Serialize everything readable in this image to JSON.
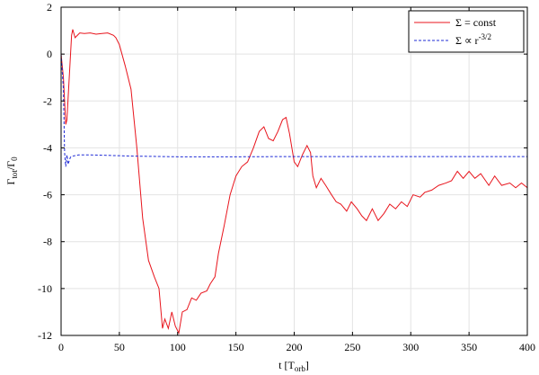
{
  "chart_data": {
    "type": "line",
    "x_label": {
      "main": "t [T",
      "sub": "orb",
      "end": "]"
    },
    "y_label": {
      "main": "Γ",
      "sub": "tot",
      "mid": "/Γ",
      "sub2": "0"
    },
    "xlim": [
      0,
      400
    ],
    "xticks": [
      0,
      50,
      100,
      150,
      200,
      250,
      300,
      350,
      400
    ],
    "ylim": [
      -12,
      2
    ],
    "yticks": [
      -12,
      -10,
      -8,
      -6,
      -4,
      -2,
      0,
      2
    ],
    "grid": true,
    "legend": "upper right",
    "series": [
      {
        "name": "Σ = const",
        "color": "#e8141c",
        "dash": "solid",
        "x": [
          0,
          2,
          4,
          5,
          7,
          9,
          10,
          12,
          14,
          16,
          20,
          25,
          30,
          35,
          40,
          45,
          47,
          50,
          55,
          60,
          65,
          70,
          75,
          80,
          84,
          87,
          89,
          92,
          95,
          98,
          101,
          104,
          108,
          112,
          116,
          120,
          125,
          128,
          132,
          135,
          140,
          145,
          150,
          155,
          160,
          165,
          170,
          174,
          178,
          182,
          186,
          190,
          193,
          196,
          200,
          203,
          207,
          211,
          214,
          216,
          219,
          223,
          227,
          232,
          236,
          240,
          245,
          249,
          254,
          258,
          262,
          267,
          272,
          277,
          282,
          287,
          292,
          297,
          302,
          308,
          312,
          318,
          324,
          330,
          335,
          340,
          345,
          350,
          355,
          360,
          367,
          372,
          378,
          385,
          390,
          395,
          400
        ],
        "values": [
          0,
          -1,
          -3,
          -2.8,
          -1,
          0.8,
          1.05,
          0.7,
          0.8,
          0.9,
          0.88,
          0.9,
          0.85,
          0.88,
          0.9,
          0.8,
          0.7,
          0.4,
          -0.5,
          -1.5,
          -4,
          -7,
          -8.8,
          -9.5,
          -10,
          -11.7,
          -11.3,
          -11.7,
          -11,
          -11.6,
          -11.9,
          -11,
          -10.9,
          -10.4,
          -10.5,
          -10.2,
          -10.1,
          -9.8,
          -9.5,
          -8.5,
          -7.3,
          -6,
          -5.2,
          -4.8,
          -4.6,
          -4,
          -3.3,
          -3.1,
          -3.6,
          -3.7,
          -3.3,
          -2.8,
          -2.7,
          -3.4,
          -4.6,
          -4.8,
          -4.3,
          -3.9,
          -4.2,
          -5.2,
          -5.7,
          -5.3,
          -5.6,
          -6,
          -6.3,
          -6.4,
          -6.7,
          -6.3,
          -6.6,
          -6.9,
          -7.1,
          -6.6,
          -7.1,
          -6.8,
          -6.4,
          -6.6,
          -6.3,
          -6.5,
          -6,
          -6.1,
          -5.9,
          -5.8,
          -5.6,
          -5.5,
          -5.4,
          -5,
          -5.3,
          -5,
          -5.3,
          -5.1,
          -5.6,
          -5.2,
          -5.6,
          -5.5,
          -5.7,
          -5.5,
          -5.7
        ]
      },
      {
        "name": "Σ ∝ r",
        "name_sup": "-3/2",
        "color": "#1f2bd6",
        "dash": "dashed",
        "x": [
          0,
          2,
          3,
          4,
          5,
          6,
          8,
          10,
          15,
          25,
          40,
          60,
          100,
          150,
          200,
          300,
          400
        ],
        "values": [
          0,
          -1.5,
          -4.2,
          -4.8,
          -4.3,
          -4.7,
          -4.4,
          -4.35,
          -4.3,
          -4.3,
          -4.32,
          -4.35,
          -4.38,
          -4.38,
          -4.37,
          -4.37,
          -4.37
        ]
      }
    ]
  }
}
